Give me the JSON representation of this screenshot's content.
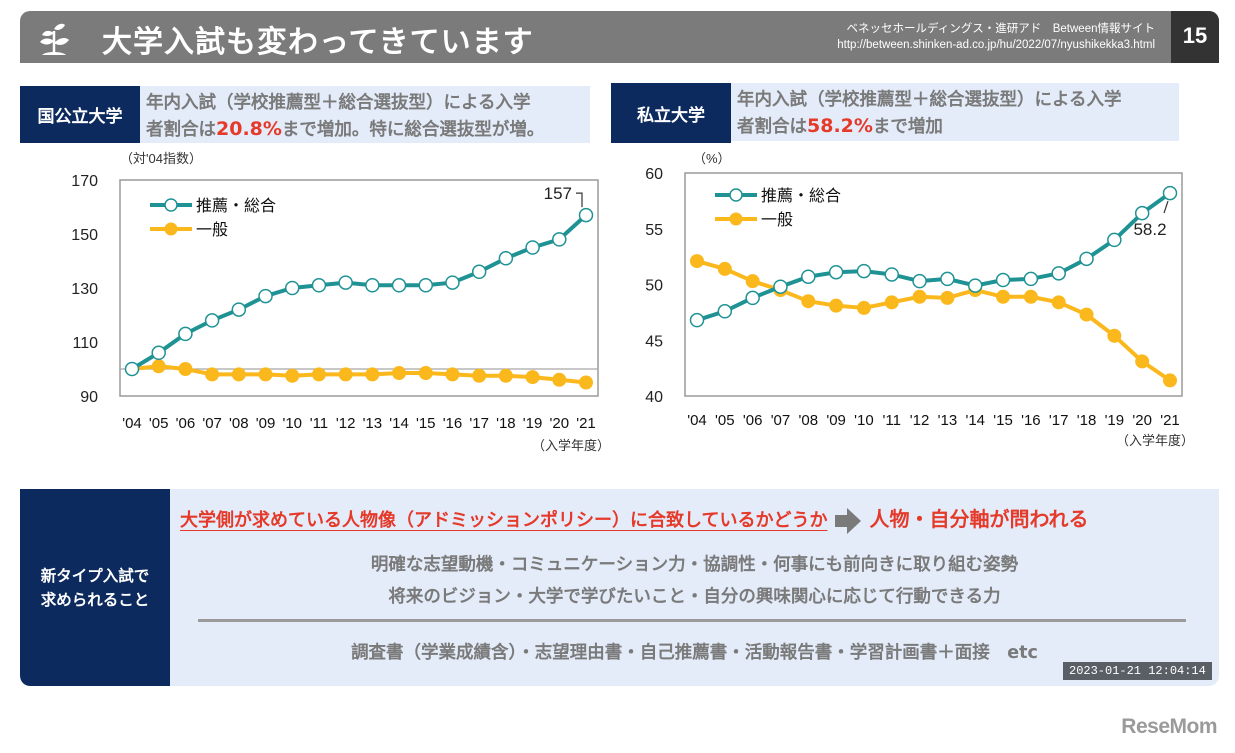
{
  "header": {
    "title": "大学入試も変わってきています",
    "source_line1": "ベネッセホールディングス・進研アド　Between情報サイト",
    "source_line2": "http://between.shinken-ad.co.jp/hu/2022/07/nyushikekka3.html",
    "page_number": "15",
    "icon": "sprout-icon"
  },
  "national": {
    "tag": "国公立大学",
    "summary_line1": "年内入試（学校推薦型＋総合選抜型）による入学",
    "summary_pre": "者割合は",
    "summary_highlight": "20.8%",
    "summary_post": "まで増加。特に総合選抜型が増。"
  },
  "private": {
    "tag": "私立大学",
    "summary_line1": "年内入試（学校推薦型＋総合選抜型）による入学",
    "summary_pre": "者割合は",
    "summary_highlight": "58.2%",
    "summary_post": "まで増加"
  },
  "colors": {
    "recommend": "#1f9294",
    "general": "#fbb81c",
    "navy": "#0c2a5e",
    "highlight_red": "#e53a2a"
  },
  "chart_data": [
    {
      "type": "line",
      "title": "国公立大学",
      "ylabel": "（対'04指数）",
      "xlabel": "（入学年度）",
      "x": [
        "'04",
        "'05",
        "'06",
        "'07",
        "'08",
        "'09",
        "'10",
        "'11",
        "'12",
        "'13",
        "'14",
        "'15",
        "'16",
        "'17",
        "'18",
        "'19",
        "'20",
        "'21"
      ],
      "ylim": [
        90,
        170
      ],
      "yticks": [
        90,
        110,
        130,
        150,
        170
      ],
      "reference_line": 100,
      "grid": false,
      "legend_position": "top-left",
      "series": [
        {
          "name": "推薦・総合",
          "marker": "open-circle",
          "values": [
            100,
            106,
            113,
            118,
            122,
            127,
            130,
            131,
            132,
            131,
            131,
            131,
            132,
            136,
            141,
            145,
            148,
            157
          ]
        },
        {
          "name": "一般",
          "marker": "filled-circle",
          "values": [
            100,
            101,
            100,
            98,
            98,
            98,
            97.5,
            98,
            98,
            98,
            98.5,
            98.5,
            98,
            97.5,
            97.5,
            97,
            96,
            95
          ]
        }
      ],
      "annotations": [
        {
          "text": "157",
          "series": "推薦・総合",
          "x": "'21"
        }
      ]
    },
    {
      "type": "line",
      "title": "私立大学",
      "ylabel": "（%）",
      "xlabel": "（入学年度）",
      "x": [
        "'04",
        "'05",
        "'06",
        "'07",
        "'08",
        "'09",
        "'10",
        "'11",
        "'12",
        "'13",
        "'14",
        "'15",
        "'16",
        "'17",
        "'18",
        "'19",
        "'20",
        "'21"
      ],
      "ylim": [
        40,
        60
      ],
      "yticks": [
        40,
        45,
        50,
        55,
        60
      ],
      "grid": false,
      "legend_position": "top-left",
      "series": [
        {
          "name": "推薦・総合",
          "marker": "open-circle",
          "values": [
            46.8,
            47.6,
            48.8,
            49.8,
            50.7,
            51.1,
            51.2,
            50.9,
            50.3,
            50.5,
            49.9,
            50.4,
            50.5,
            51.0,
            52.3,
            54.0,
            56.4,
            58.2
          ]
        },
        {
          "name": "一般",
          "marker": "filled-circle",
          "values": [
            52.1,
            51.4,
            50.3,
            49.5,
            48.5,
            48.1,
            47.9,
            48.4,
            48.9,
            48.8,
            49.5,
            48.9,
            48.9,
            48.4,
            47.3,
            45.4,
            43.1,
            41.4
          ]
        }
      ],
      "annotations": [
        {
          "text": "58.2",
          "series": "推薦・総合",
          "x": "'21"
        }
      ]
    }
  ],
  "bottom": {
    "side_line1": "新タイプ入試で",
    "side_line2": "求められること",
    "headline_underlined": "大学側が求めている人物像（アドミッションポリシー）に合致しているかどうか",
    "headline_conclusion": "人物・自分軸が問われる",
    "line1": "明確な志望動機・コミュニケーション力・協調性・何事にも前向きに取り組む姿勢",
    "line2": "将来のビジョン・大学で学びたいこと・自分の興味関心に応じて行動できる力",
    "line3": "調査書（学業成績含）・志望理由書・自己推薦書・活動報告書・学習計画書＋面接　etc"
  },
  "timestamp": "2023-01-21  12:04:14",
  "brand": "ReseMom"
}
